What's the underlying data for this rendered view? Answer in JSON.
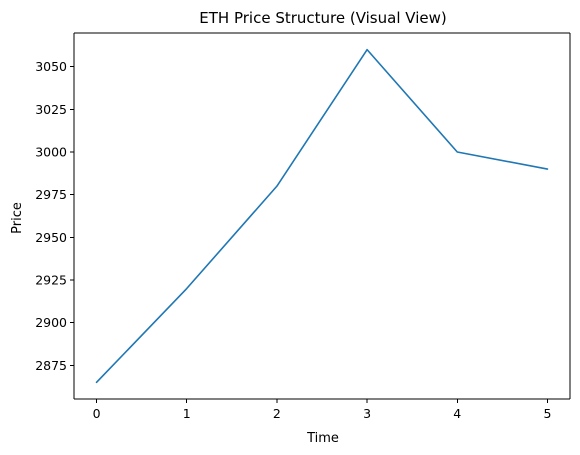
{
  "chart_data": {
    "type": "line",
    "title": "ETH Price Structure (Visual View)",
    "xlabel": "Time",
    "ylabel": "Price",
    "x": [
      0,
      1,
      2,
      3,
      4,
      5
    ],
    "series": [
      {
        "values": [
          2865,
          2920,
          2980,
          3060,
          3000,
          2990
        ],
        "color": "#1f77b4"
      }
    ],
    "xlim": [
      -0.25,
      5.25
    ],
    "ylim": [
      2855.25,
      3069.75
    ],
    "xticks": [
      0,
      1,
      2,
      3,
      4,
      5
    ],
    "yticks": [
      2875,
      2900,
      2925,
      2950,
      2975,
      3000,
      3025,
      3050
    ],
    "grid": false,
    "legend": "none"
  }
}
